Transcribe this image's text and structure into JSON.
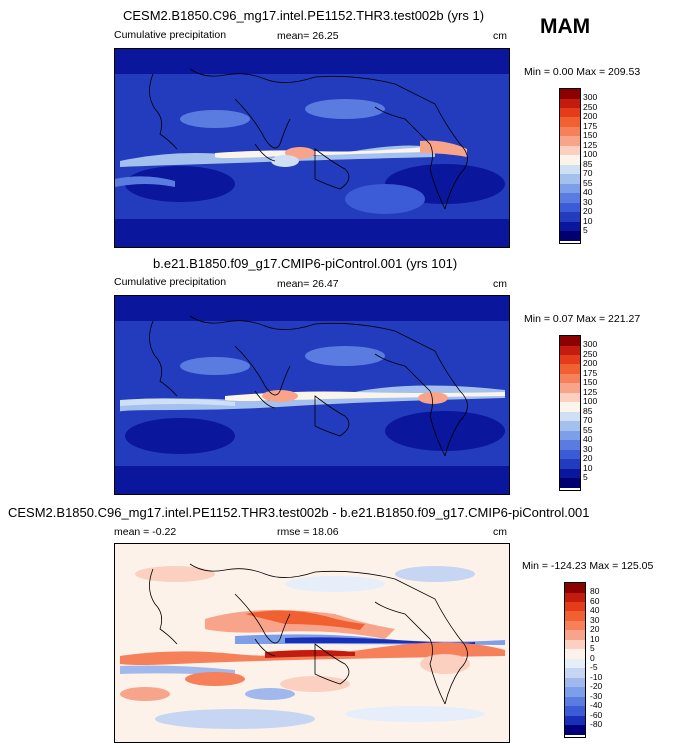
{
  "season": "MAM",
  "panels": [
    {
      "title": "CESM2.B1850.C96_mg17.intel.PE1152.THR3.test002b (yrs 1)",
      "left_label": "Cumulative precipitation",
      "center_label": "mean=  26.25",
      "right_label": "cm",
      "minmax": "Min =   0.00 Max = 209.53"
    },
    {
      "title": "b.e21.B1850.f09_g17.CMIP6-piControl.001 (yrs 101)",
      "left_label": "Cumulative precipitation",
      "center_label": "mean=  26.47",
      "right_label": "cm",
      "minmax": "Min =   0.07 Max = 221.27"
    },
    {
      "title": "CESM2.B1850.C96_mg17.intel.PE1152.THR3.test002b - b.e21.B1850.f09_g17.CMIP6-piControl.001",
      "left_label": "mean =  -0.22",
      "center_label": "rmse =  18.06",
      "right_label": "cm",
      "minmax": "Min = -124.23 Max = 125.05"
    }
  ],
  "chart_data": [
    {
      "type": "heatmap",
      "title": "CESM2.B1850.C96_mg17.intel.PE1152.THR3.test002b (yrs 1)",
      "variable": "Cumulative precipitation",
      "units": "cm",
      "mean": 26.25,
      "min": 0.0,
      "max": 209.53,
      "colorbar_levels": [
        "300",
        "250",
        "200",
        "175",
        "150",
        "125",
        "100",
        "85",
        "70",
        "55",
        "40",
        "30",
        "20",
        "10",
        "5"
      ],
      "colorbar_colors": [
        "#8b0000",
        "#c31b0e",
        "#e43c1a",
        "#f06030",
        "#f5805a",
        "#f8a48a",
        "#fbd0c0",
        "#fbf4ea",
        "#cfe0f5",
        "#a4c1ee",
        "#7d9ee8",
        "#5a7ce0",
        "#3c5bd6",
        "#233bbd",
        "#0a169c",
        "#00006e"
      ]
    },
    {
      "type": "heatmap",
      "title": "b.e21.B1850.f09_g17.CMIP6-piControl.001 (yrs 101)",
      "variable": "Cumulative precipitation",
      "units": "cm",
      "mean": 26.47,
      "min": 0.07,
      "max": 221.27,
      "colorbar_levels": [
        "300",
        "250",
        "200",
        "175",
        "150",
        "125",
        "100",
        "85",
        "70",
        "55",
        "40",
        "30",
        "20",
        "10",
        "5"
      ],
      "colorbar_colors": [
        "#8b0000",
        "#c31b0e",
        "#e43c1a",
        "#f06030",
        "#f5805a",
        "#f8a48a",
        "#fbd0c0",
        "#fbf4ea",
        "#cfe0f5",
        "#a4c1ee",
        "#7d9ee8",
        "#5a7ce0",
        "#3c5bd6",
        "#233bbd",
        "#0a169c",
        "#00006e"
      ]
    },
    {
      "type": "heatmap",
      "title": "CESM2.B1850.C96_mg17.intel.PE1152.THR3.test002b - b.e21.B1850.f09_g17.CMIP6-piControl.001",
      "units": "cm",
      "mean": -0.22,
      "rmse": 18.06,
      "min": -124.23,
      "max": 125.05,
      "colorbar_levels": [
        "80",
        "60",
        "40",
        "30",
        "20",
        "10",
        "5",
        "0",
        "-5",
        "-10",
        "-20",
        "-30",
        "-40",
        "-60",
        "-80"
      ],
      "colorbar_colors": [
        "#8b0000",
        "#c31b0e",
        "#e43c1a",
        "#f06030",
        "#f5805a",
        "#f8a48a",
        "#fbd0c0",
        "#fdf2ea",
        "#e6eefa",
        "#c5d5f2",
        "#a0b8ec",
        "#7d9ee8",
        "#5a7ce0",
        "#3c5bd6",
        "#1a2fb8",
        "#00007a"
      ]
    }
  ]
}
